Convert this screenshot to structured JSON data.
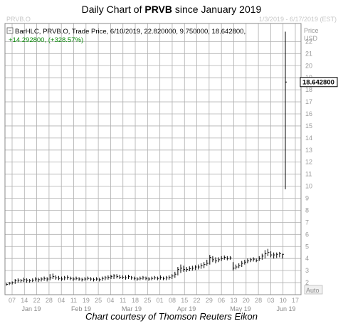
{
  "header": {
    "title_prefix": "Daily Chart of ",
    "title_ticker": "PRVB",
    "title_suffix": " since January 2019"
  },
  "watermark_left": "PRVB.O",
  "date_range": "1/3/2019 - 6/17/2019 (EST)",
  "info_line": "BarHLC, PRVB.O, Trade Price, 6/10/2019, 22.820000, 9.750000, 18.642800,",
  "change_line": "+14.292800, (+328.57%)",
  "axis": {
    "price_label": "Price",
    "currency_label": "USD",
    "auto_label": "Auto"
  },
  "last_price_label": "18.642800",
  "caption": "Chart courtesy of Thomson Reuters Eikon",
  "colors": {
    "bars": "#000000",
    "grid": "#b0b0b0",
    "change": "#0a8a0a",
    "last_box": "#000000"
  },
  "chart_data": {
    "type": "ohlc",
    "ylim": [
      1,
      23.5
    ],
    "yticks": [
      2,
      3,
      4,
      5,
      6,
      7,
      8,
      9,
      10,
      11,
      12,
      13,
      14,
      15,
      16,
      17,
      18,
      19,
      20,
      21,
      22
    ],
    "x_tick_labels": [
      "07",
      "14",
      "22",
      "28",
      "04",
      "11",
      "19",
      "25",
      "04",
      "11",
      "18",
      "25",
      "01",
      "08",
      "15",
      "22",
      "29",
      "06",
      "13",
      "20",
      "28",
      "03",
      "10",
      "17"
    ],
    "month_labels": [
      "Jan 19",
      "Feb 19",
      "Mar 19",
      "Apr 19",
      "May 19",
      "Jun 19"
    ],
    "last_bar": {
      "date": "6/10/2019",
      "high": 22.82,
      "low": 9.75,
      "close": 18.6428
    },
    "series": [
      {
        "low": 1.75,
        "high": 1.95,
        "close": 1.85
      },
      {
        "low": 1.8,
        "high": 2.05,
        "close": 1.95
      },
      {
        "low": 1.85,
        "high": 2.1,
        "close": 2.0
      },
      {
        "low": 1.9,
        "high": 2.3,
        "close": 2.15
      },
      {
        "low": 2.0,
        "high": 2.35,
        "close": 2.2
      },
      {
        "low": 2.0,
        "high": 2.3,
        "close": 2.15
      },
      {
        "low": 2.05,
        "high": 2.4,
        "close": 2.25
      },
      {
        "low": 2.0,
        "high": 2.35,
        "close": 2.2
      },
      {
        "low": 2.0,
        "high": 2.3,
        "close": 2.15
      },
      {
        "low": 2.05,
        "high": 2.35,
        "close": 2.2
      },
      {
        "low": 2.1,
        "high": 2.45,
        "close": 2.3
      },
      {
        "low": 2.05,
        "high": 2.4,
        "close": 2.25
      },
      {
        "low": 2.1,
        "high": 2.45,
        "close": 2.3
      },
      {
        "low": 2.15,
        "high": 2.5,
        "close": 2.35
      },
      {
        "low": 2.1,
        "high": 2.45,
        "close": 2.3
      },
      {
        "low": 2.2,
        "high": 2.7,
        "close": 2.4
      },
      {
        "low": 2.3,
        "high": 2.75,
        "close": 2.5
      },
      {
        "low": 2.25,
        "high": 2.6,
        "close": 2.4
      },
      {
        "low": 2.2,
        "high": 2.55,
        "close": 2.35
      },
      {
        "low": 2.15,
        "high": 2.5,
        "close": 2.3
      },
      {
        "low": 2.2,
        "high": 2.55,
        "close": 2.4
      },
      {
        "low": 2.25,
        "high": 2.6,
        "close": 2.45
      },
      {
        "low": 2.2,
        "high": 2.5,
        "close": 2.35
      },
      {
        "low": 2.15,
        "high": 2.45,
        "close": 2.3
      },
      {
        "low": 2.2,
        "high": 2.5,
        "close": 2.35
      },
      {
        "low": 2.15,
        "high": 2.45,
        "close": 2.3
      },
      {
        "low": 2.1,
        "high": 2.4,
        "close": 2.25
      },
      {
        "low": 2.15,
        "high": 2.45,
        "close": 2.3
      },
      {
        "low": 2.2,
        "high": 2.5,
        "close": 2.35
      },
      {
        "low": 2.15,
        "high": 2.45,
        "close": 2.3
      },
      {
        "low": 2.1,
        "high": 2.4,
        "close": 2.25
      },
      {
        "low": 2.15,
        "high": 2.45,
        "close": 2.3
      },
      {
        "low": 2.1,
        "high": 2.4,
        "close": 2.25
      },
      {
        "low": 2.15,
        "high": 2.5,
        "close": 2.35
      },
      {
        "low": 2.2,
        "high": 2.55,
        "close": 2.4
      },
      {
        "low": 2.25,
        "high": 2.6,
        "close": 2.45
      },
      {
        "low": 2.3,
        "high": 2.65,
        "close": 2.5
      },
      {
        "low": 2.3,
        "high": 2.7,
        "close": 2.55
      },
      {
        "low": 2.35,
        "high": 2.7,
        "close": 2.5
      },
      {
        "low": 2.3,
        "high": 2.65,
        "close": 2.45
      },
      {
        "low": 2.3,
        "high": 2.6,
        "close": 2.45
      },
      {
        "low": 2.25,
        "high": 2.6,
        "close": 2.4
      },
      {
        "low": 2.3,
        "high": 2.65,
        "close": 2.5
      },
      {
        "low": 2.25,
        "high": 2.55,
        "close": 2.4
      },
      {
        "low": 2.2,
        "high": 2.5,
        "close": 2.35
      },
      {
        "low": 2.15,
        "high": 2.45,
        "close": 2.3
      },
      {
        "low": 2.2,
        "high": 2.5,
        "close": 2.35
      },
      {
        "low": 2.25,
        "high": 2.55,
        "close": 2.4
      },
      {
        "low": 2.2,
        "high": 2.5,
        "close": 2.35
      },
      {
        "low": 2.15,
        "high": 2.45,
        "close": 2.3
      },
      {
        "low": 2.2,
        "high": 2.5,
        "close": 2.35
      },
      {
        "low": 2.25,
        "high": 2.55,
        "close": 2.4
      },
      {
        "low": 2.2,
        "high": 2.5,
        "close": 2.35
      },
      {
        "low": 2.25,
        "high": 2.6,
        "close": 2.45
      },
      {
        "low": 2.2,
        "high": 2.5,
        "close": 2.35
      },
      {
        "low": 2.2,
        "high": 2.55,
        "close": 2.4
      },
      {
        "low": 2.25,
        "high": 2.6,
        "close": 2.45
      },
      {
        "low": 2.3,
        "high": 2.7,
        "close": 2.55
      },
      {
        "low": 2.4,
        "high": 2.9,
        "close": 2.7
      },
      {
        "low": 2.6,
        "high": 3.3,
        "close": 3.1
      },
      {
        "low": 2.8,
        "high": 3.5,
        "close": 3.2
      },
      {
        "low": 2.9,
        "high": 3.4,
        "close": 3.1
      },
      {
        "low": 2.9,
        "high": 3.3,
        "close": 3.1
      },
      {
        "low": 2.95,
        "high": 3.35,
        "close": 3.15
      },
      {
        "low": 3.0,
        "high": 3.4,
        "close": 3.2
      },
      {
        "low": 3.05,
        "high": 3.45,
        "close": 3.3
      },
      {
        "low": 3.1,
        "high": 3.5,
        "close": 3.3
      },
      {
        "low": 3.15,
        "high": 3.6,
        "close": 3.4
      },
      {
        "low": 3.2,
        "high": 3.7,
        "close": 3.5
      },
      {
        "low": 3.4,
        "high": 3.9,
        "close": 3.6
      },
      {
        "low": 3.5,
        "high": 4.3,
        "close": 4.1
      },
      {
        "low": 3.7,
        "high": 4.2,
        "close": 3.9
      },
      {
        "low": 3.6,
        "high": 4.1,
        "close": 3.8
      },
      {
        "low": 3.7,
        "high": 4.1,
        "close": 3.9
      },
      {
        "low": 3.8,
        "high": 4.2,
        "close": 4.0
      },
      {
        "low": 3.9,
        "high": 4.25,
        "close": 4.1
      },
      {
        "low": 3.85,
        "high": 4.2,
        "close": 4.0
      },
      {
        "low": 3.9,
        "high": 4.2,
        "close": 4.05
      },
      {
        "low": 3.0,
        "high": 3.7,
        "close": 3.2
      },
      {
        "low": 3.1,
        "high": 3.5,
        "close": 3.3
      },
      {
        "low": 3.2,
        "high": 3.6,
        "close": 3.4
      },
      {
        "low": 3.3,
        "high": 3.8,
        "close": 3.6
      },
      {
        "low": 3.5,
        "high": 3.9,
        "close": 3.7
      },
      {
        "low": 3.6,
        "high": 4.0,
        "close": 3.8
      },
      {
        "low": 3.7,
        "high": 4.05,
        "close": 3.9
      },
      {
        "low": 3.75,
        "high": 4.1,
        "close": 3.95
      },
      {
        "low": 3.7,
        "high": 4.0,
        "close": 3.85
      },
      {
        "low": 3.8,
        "high": 4.2,
        "close": 4.0
      },
      {
        "low": 3.9,
        "high": 4.4,
        "close": 4.2
      },
      {
        "low": 4.0,
        "high": 4.7,
        "close": 4.4
      },
      {
        "low": 4.2,
        "high": 4.8,
        "close": 4.5
      },
      {
        "low": 4.1,
        "high": 4.6,
        "close": 4.3
      },
      {
        "low": 4.0,
        "high": 4.5,
        "close": 4.3
      },
      {
        "low": 4.05,
        "high": 4.5,
        "close": 4.35
      },
      {
        "low": 4.1,
        "high": 4.55,
        "close": 4.4
      },
      {
        "low": 4.0,
        "high": 4.4,
        "close": 4.35
      },
      {
        "low": 9.75,
        "high": 22.82,
        "close": 18.6428
      }
    ]
  }
}
